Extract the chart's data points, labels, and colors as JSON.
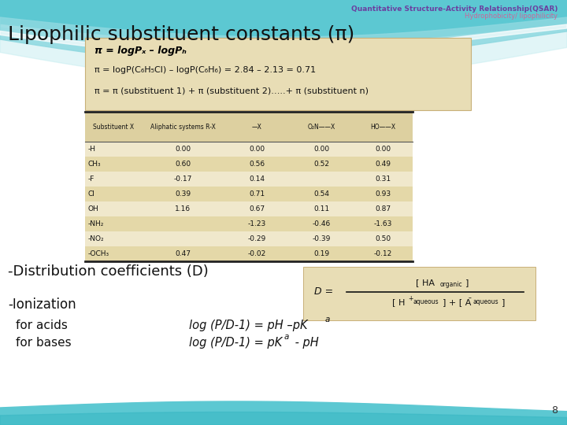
{
  "bg_color": "#ffffff",
  "title_text": "Quantitative Structure-Activity Relationship(QSAR)",
  "title_color": "#6b3fa0",
  "subtitle_text": "Hydrophobicity/ lipophilicity",
  "subtitle_color": "#cc6699",
  "main_title": "Lipophilic substituent constants (π)",
  "formula_bold": "π = logPₓ – logPₕ",
  "formula2": "π = logP(C₆H₅Cl) – logP(C₆H₆) = 2.84 – 2.13 = 0.71",
  "formula3": "π = π (substituent 1) + π (substituent 2)…..+ π (substituent n)",
  "table_rows": [
    [
      "-H",
      "0.00",
      "0.00",
      "0.00",
      "0.00"
    ],
    [
      "CH₃",
      "0.60",
      "0.56",
      "0.52",
      "0.49"
    ],
    [
      "-F",
      "-0.17",
      "0.14",
      "",
      "0.31"
    ],
    [
      "Cl",
      "0.39",
      "0.71",
      "0.54",
      "0.93"
    ],
    [
      "OH",
      "1.16",
      "0.67",
      "0.11",
      "0.87"
    ],
    [
      "-NH₂",
      "",
      "-1.23",
      "-0.46",
      "-1.63"
    ],
    [
      "-NO₂",
      "",
      "-0.29",
      "-0.39",
      "0.50"
    ],
    [
      "-OCH₃",
      "0.47",
      "-0.02",
      "0.19",
      "-0.12"
    ]
  ],
  "dist_coeff_text": "-Distribution coefficients (D)",
  "ionization_text": "-Ionization",
  "for_acids": "for acids",
  "for_bases": "for bases",
  "acids_formula": "log (P/D-1) = pH –pK",
  "bases_formula": "log (P/D-1) = pK  - pH",
  "page_num": "8",
  "wave_teal": "#5cc8d2",
  "wave_light": "#8dd8e0",
  "formula_box_color": "#e8ddb5",
  "table_bg_light": "#f0e8cc",
  "table_bg_dark": "#e4d8a8"
}
